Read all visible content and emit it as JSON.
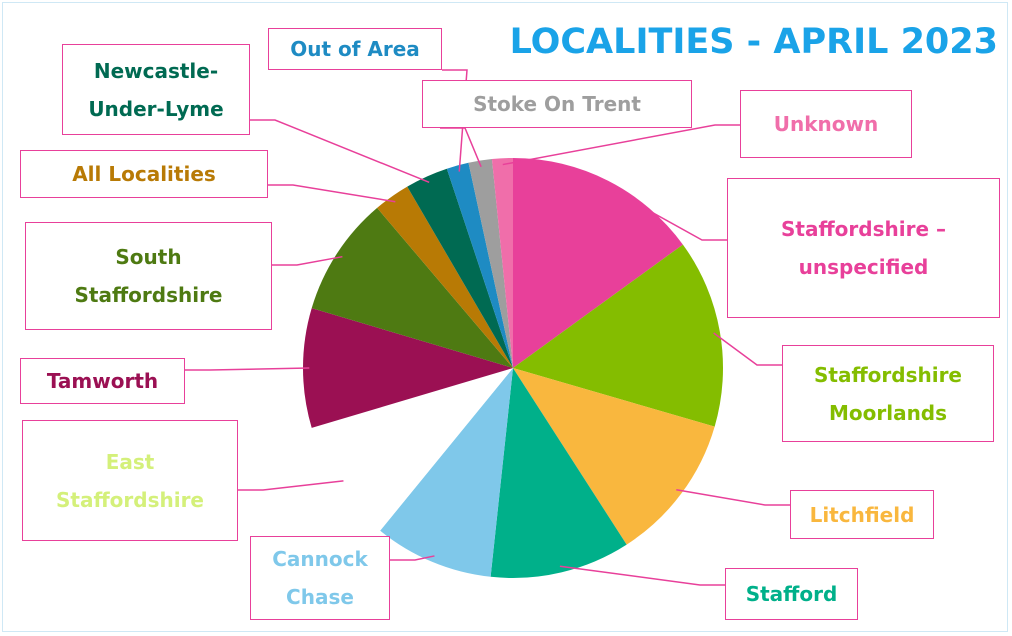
{
  "chart_data": {
    "type": "pie",
    "title": "LOCALITIES - APRIL 2023",
    "categories": [
      "Staffordshire – unspecified",
      "Staffordshire Moorlands",
      "Litchfield",
      "Stafford",
      "Cannock Chase",
      "East Staffordshire",
      "Tamworth",
      "South Staffordshire",
      "All Localities",
      "Newcastle-Under-Lyme",
      "Out of Area",
      "Stoke On Trent",
      "Unknown"
    ],
    "values": [
      15,
      14.5,
      11.4,
      10.8,
      9.2,
      9.5,
      9.2,
      9.2,
      2.8,
      3.3,
      1.7,
      1.8,
      1.6
    ],
    "colors": [
      "#e8409a",
      "#84bd00",
      "#f9b73e",
      "#00b08a",
      "#7fc8ea",
      "#ffffff",
      "#9b1053",
      "#4e7a12",
      "#b87a05",
      "#006a52",
      "#1e8bc3",
      "#9e9e9e",
      "#f06eaa"
    ],
    "label_colors": [
      "#e8409a",
      "#84bd00",
      "#f9b73e",
      "#00b08a",
      "#7fc8ea",
      "#d4f07a",
      "#9b1053",
      "#4e7a12",
      "#b87a05",
      "#006a52",
      "#1e8bc3",
      "#9e9e9e",
      "#f06eaa"
    ]
  }
}
